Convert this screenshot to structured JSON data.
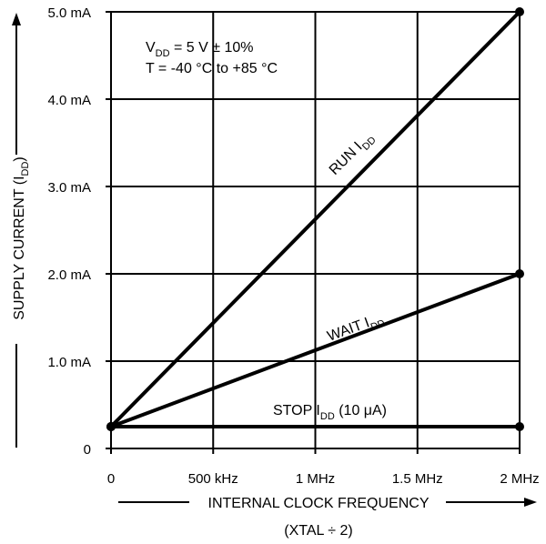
{
  "chart_data": {
    "type": "line",
    "xlabel": "INTERNAL CLOCK FREQUENCY",
    "xlabel_sub": "(XTAL ÷ 2)",
    "ylabel": "SUPPLY CURRENT (I",
    "ylabel_sub": "DD",
    "ylabel_close": ")",
    "xlim": [
      0,
      2
    ],
    "ylim": [
      0,
      5
    ],
    "grid": true,
    "x_ticks": [
      {
        "value": 0,
        "label": "0"
      },
      {
        "value": 0.5,
        "label": "500 kHz"
      },
      {
        "value": 1,
        "label": "1 MHz"
      },
      {
        "value": 1.5,
        "label": "1.5 MHz"
      },
      {
        "value": 2,
        "label": "2 MHz"
      }
    ],
    "y_ticks": [
      {
        "value": 0,
        "label": "0"
      },
      {
        "value": 1,
        "label": "1.0 mA"
      },
      {
        "value": 2,
        "label": "2.0 mA"
      },
      {
        "value": 3,
        "label": "3.0 mA"
      },
      {
        "value": 4,
        "label": "4.0 mA"
      },
      {
        "value": 5,
        "label": "5.0 mA"
      }
    ],
    "conditions": {
      "line1_prefix": "V",
      "line1_sub": "DD",
      "line1_rest": "  = 5 V ± 10%",
      "line2": "T = -40 °C to +85 °C"
    },
    "series": [
      {
        "name": "RUN I",
        "name_sub": "DD",
        "name_suffix": "",
        "x": [
          0,
          2
        ],
        "y": [
          0.25,
          5.0
        ]
      },
      {
        "name": "WAIT I",
        "name_sub": "DD",
        "name_suffix": "",
        "x": [
          0,
          2
        ],
        "y": [
          0.25,
          2.0
        ]
      },
      {
        "name": "STOP I",
        "name_sub": "DD",
        "name_suffix": " (10 μA)",
        "x": [
          0,
          2
        ],
        "y": [
          0.25,
          0.25
        ]
      }
    ]
  }
}
